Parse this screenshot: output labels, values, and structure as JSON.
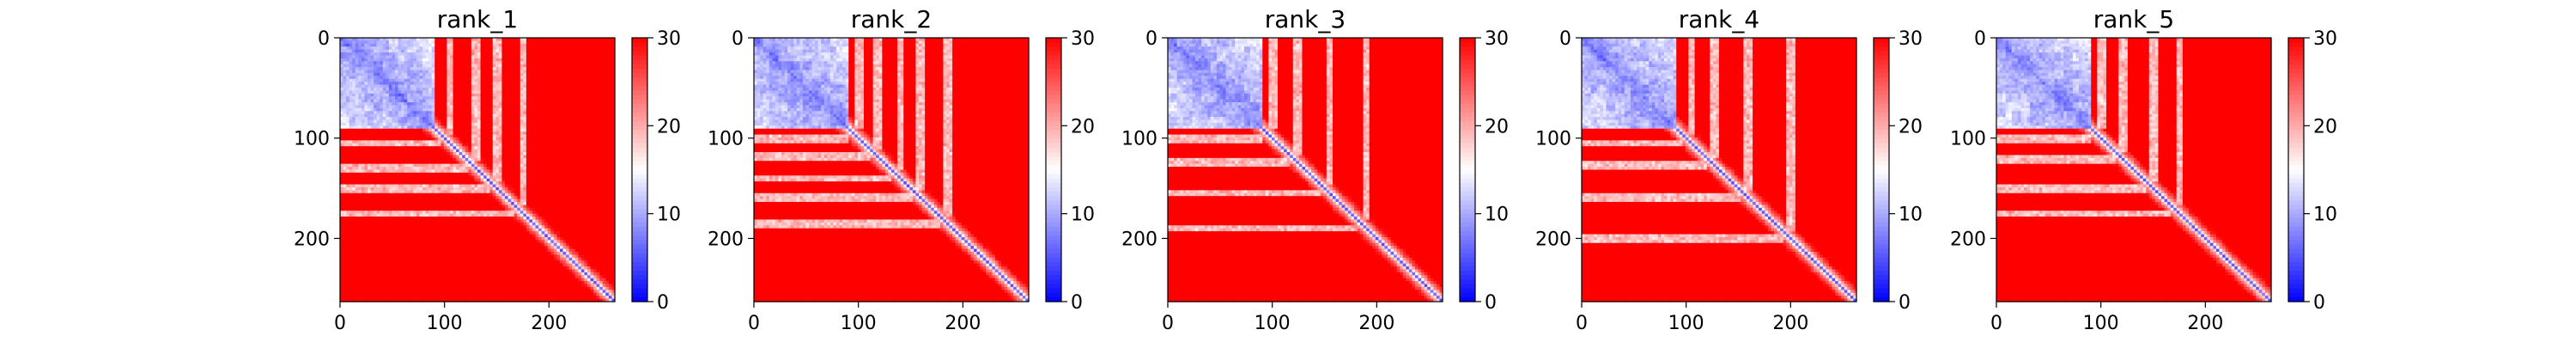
{
  "chart_data": {
    "type": "heatmap",
    "colormap": [
      "#0000ff",
      "#ffffff",
      "#ff0000"
    ],
    "colorbar": {
      "min": 0,
      "max": 30,
      "ticks": [
        0,
        10,
        20,
        30
      ]
    },
    "size": 263,
    "x_ticks": [
      0,
      100,
      200
    ],
    "y_ticks": [
      0,
      100,
      200
    ],
    "panels": [
      {
        "title": "rank_1"
      },
      {
        "title": "rank_2"
      },
      {
        "title": "rank_3"
      },
      {
        "title": "rank_4"
      },
      {
        "title": "rank_5"
      }
    ]
  }
}
